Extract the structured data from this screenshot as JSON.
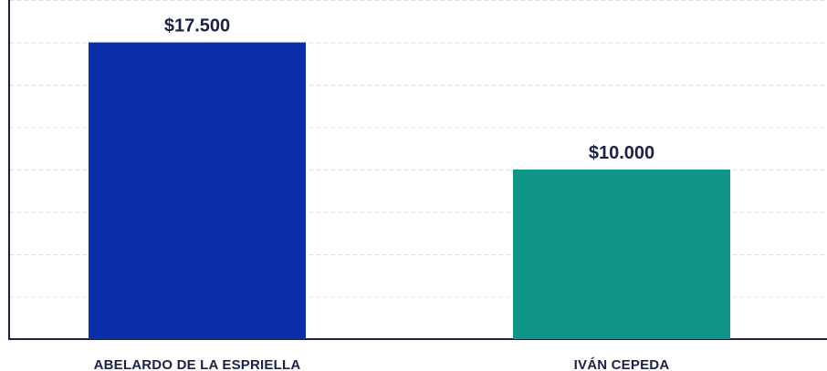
{
  "chart_data": {
    "type": "bar",
    "categories": [
      "ABELARDO DE LA ESPRIELLA",
      "IVÁN CEPEDA"
    ],
    "values": [
      17500,
      10000
    ],
    "value_labels": [
      "$17.500",
      "$10.000"
    ],
    "title": "",
    "xlabel": "",
    "ylabel": "",
    "ylim": [
      0,
      20000
    ],
    "grid": true,
    "legend": "none",
    "colors": [
      "#0b2fa8",
      "#0f9488"
    ]
  },
  "style": {
    "grid_color": "#d9dce3",
    "axis_color": "#1c2340",
    "label_color": "#1b2148"
  }
}
